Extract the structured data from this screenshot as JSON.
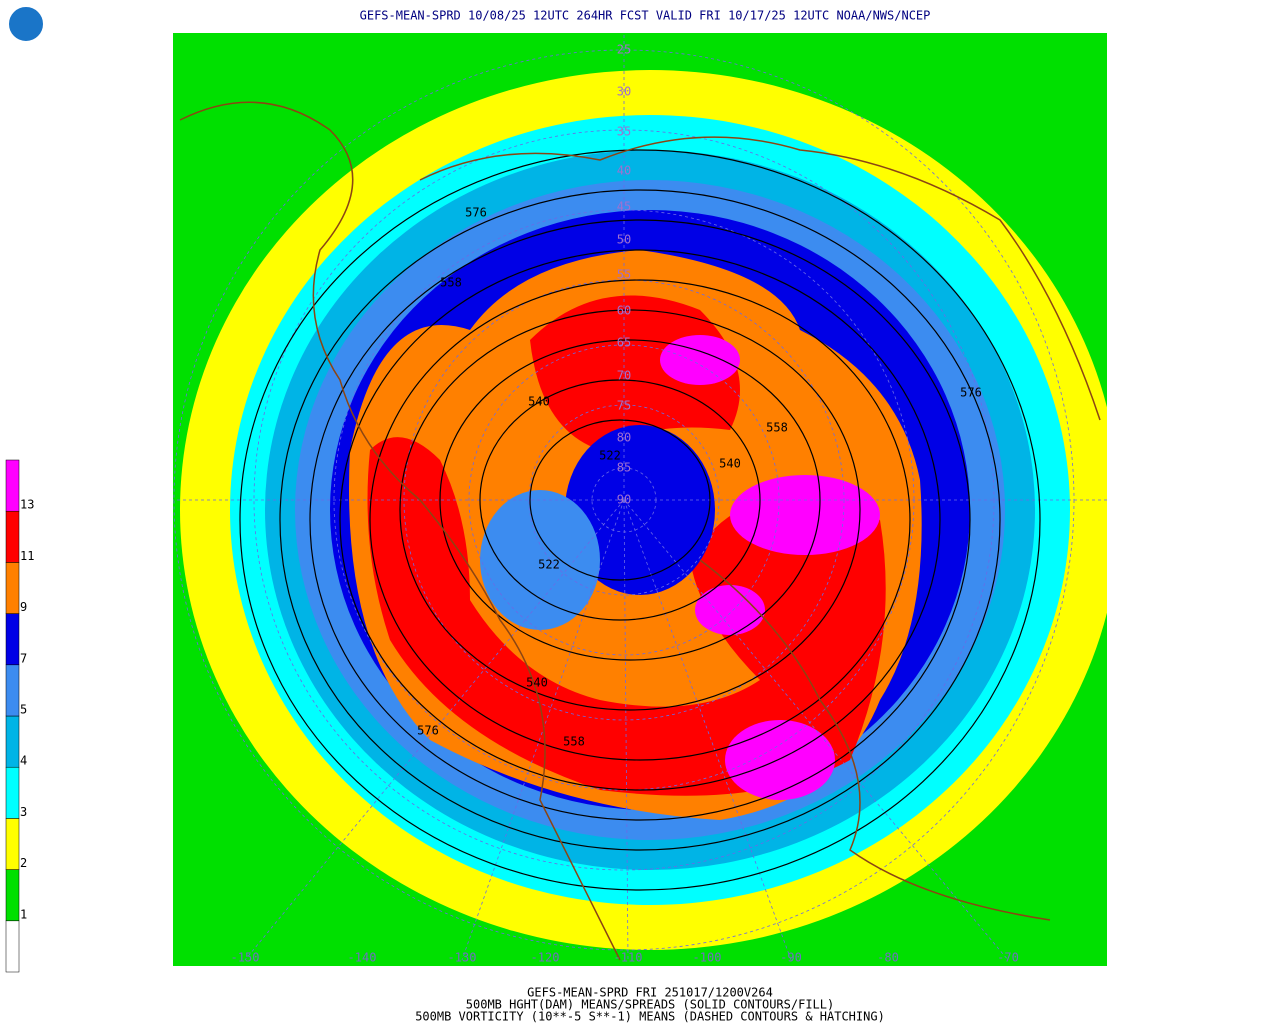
{
  "header": {
    "title": "GEFS-MEAN-SPRD 10/08/25 12UTC 264HR FCST VALID FRI 10/17/25 12UTC NOAA/NWS/NCEP"
  },
  "colorbar": {
    "labels": [
      "1",
      "2",
      "3",
      "4",
      "5",
      "7",
      "9",
      "11",
      "13"
    ],
    "colors": [
      "#ffffff",
      "#00e000",
      "#ffff00",
      "#00ffff",
      "#00b4e6",
      "#3c8cf0",
      "#0000e6",
      "#ff8000",
      "#ff0000",
      "#ff00ff"
    ]
  },
  "contour_labels": [
    "576",
    "558",
    "540",
    "558",
    "576",
    "522",
    "540",
    "522",
    "540",
    "558",
    "576"
  ],
  "latitude_labels": [
    "25",
    "30",
    "35",
    "40",
    "45",
    "50",
    "55",
    "60",
    "65",
    "70",
    "75",
    "80",
    "85",
    "90"
  ],
  "longitude_labels": [
    "-150",
    "-140",
    "-130",
    "-120",
    "-110",
    "-100",
    "-90",
    "-80",
    "-70"
  ],
  "footer": [
    "GEFS-MEAN-SPRD FRI 251017/1200V264",
    "500MB HGHT(DAM) MEANS/SPREADS (SOLID CONTOURS/FILL)",
    "500MB VORTICITY (10**-5 S**-1) MEANS (DASHED CONTOURS & HATCHING)"
  ]
}
